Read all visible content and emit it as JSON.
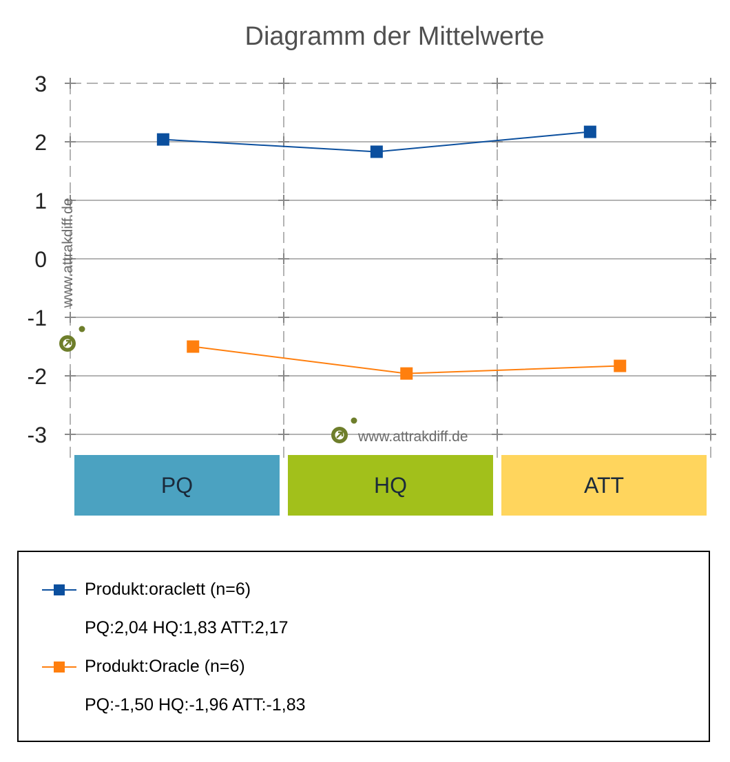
{
  "colors": {
    "series_1": "#0b4f9e",
    "series_2": "#ff7f0e",
    "band_pq": "#4ba2c1",
    "band_hq": "#a2c01b",
    "band_att": "#ffd55d",
    "watermark": "#6e7e2b",
    "grid": "#b3b3b3"
  },
  "watermark": {
    "text": "www.attrakdiff.de",
    "icon": "attrakdiff-logo-icon"
  },
  "chart_data": {
    "type": "line",
    "title": "Diagramm der Mittelwerte",
    "xlabel": "",
    "ylabel": "",
    "categories": [
      "PQ",
      "HQ",
      "ATT"
    ],
    "ylim": [
      -3,
      3
    ],
    "yticks": [
      "3",
      "2",
      "1",
      "0",
      "-1",
      "-2",
      "-3"
    ],
    "ytick_values": [
      3,
      2,
      1,
      0,
      -1,
      -2,
      -3
    ],
    "grid": true,
    "legend_position": "bottom",
    "series": [
      {
        "name": "Produkt:oraclett (n=6)",
        "values": [
          2.04,
          1.83,
          2.17
        ],
        "marker": "square",
        "summary": "PQ:2,04 HQ:1,83 ATT:2,17"
      },
      {
        "name": "Produkt:Oracle (n=6)",
        "values": [
          -1.5,
          -1.96,
          -1.83
        ],
        "marker": "square",
        "summary": "PQ:-1,50 HQ:-1,96 ATT:-1,83"
      }
    ]
  }
}
